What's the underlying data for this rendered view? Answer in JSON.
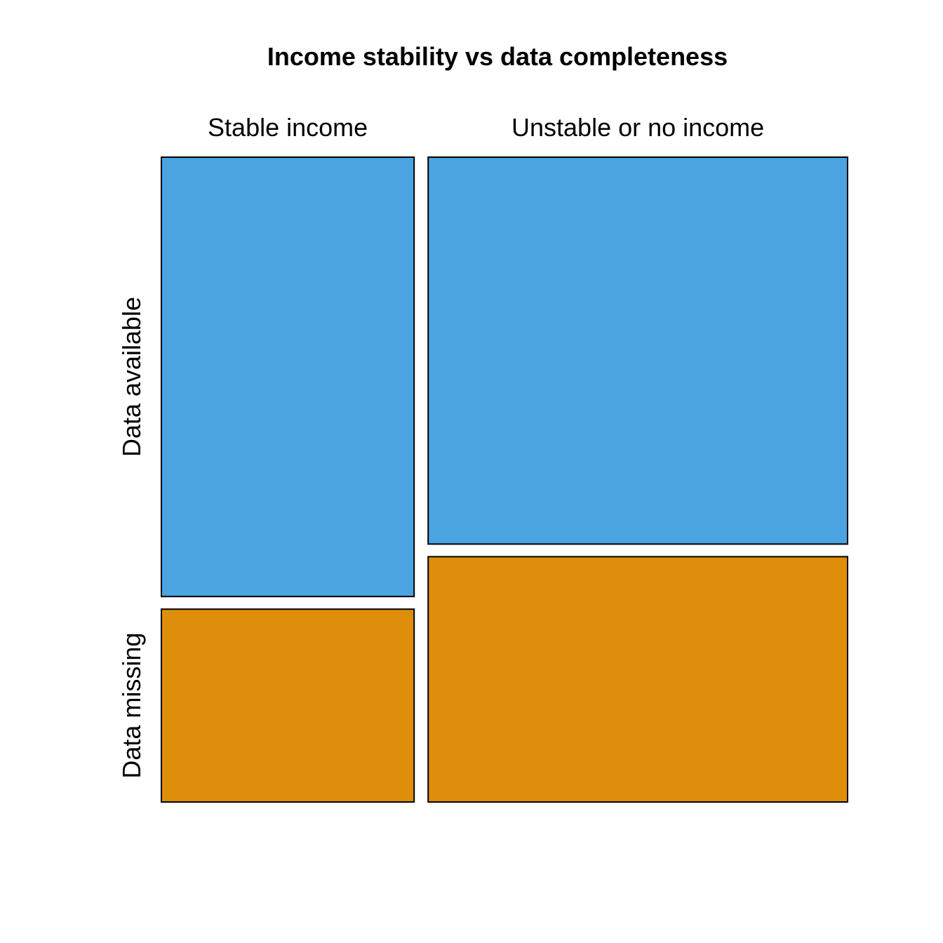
{
  "chart_data": {
    "type": "mosaic",
    "title": "Income stability vs data completeness",
    "columns": [
      "Stable income",
      "Unstable or no income"
    ],
    "rows": [
      "Data available",
      "Data missing"
    ],
    "column_proportions": [
      0.376,
      0.624
    ],
    "row_proportions_within_column": [
      [
        0.695,
        0.305
      ],
      [
        0.612,
        0.388
      ]
    ],
    "colors": {
      "Data available": "#4aa4e2",
      "Data missing": "#de8e0b",
      "stroke": "#000000"
    },
    "legend": "none",
    "grid": false
  }
}
